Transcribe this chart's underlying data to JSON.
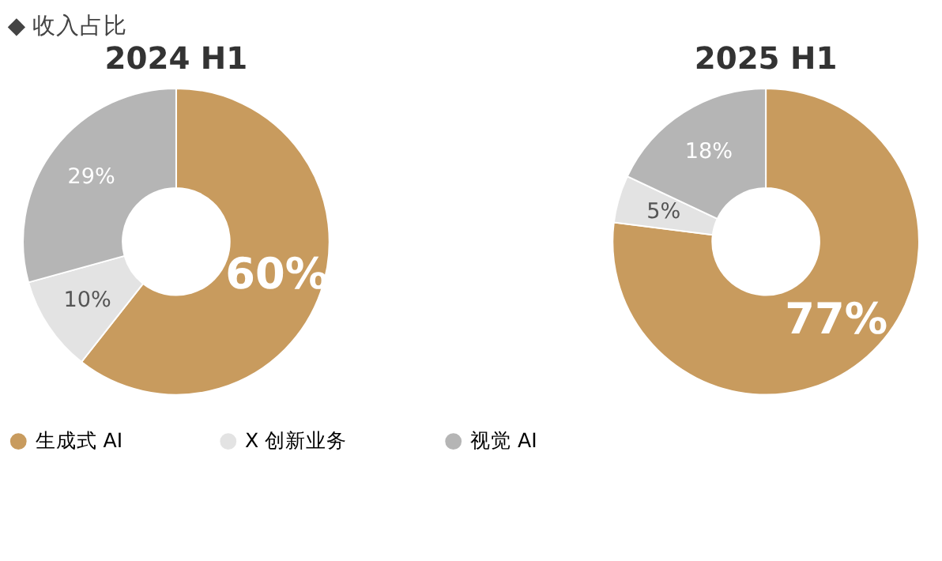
{
  "chart_data": [
    {
      "type": "donut",
      "title": "2024 H1",
      "annotations": [
        "◆ 收入占比"
      ],
      "categories": [
        "生成式 AI",
        "X 创新业务",
        "视觉 AI"
      ],
      "values": [
        60,
        10,
        29
      ],
      "colors": [
        "#c89b5e",
        "#e3e3e3",
        "#b5b5b5"
      ],
      "value_labels": [
        "60%",
        "10%",
        "29%"
      ],
      "legend": "bottom"
    },
    {
      "type": "donut",
      "title": "2025 H1",
      "categories": [
        null,
        null,
        null
      ],
      "values": [
        77,
        5,
        18
      ],
      "colors": [
        "#c89b5e",
        "#e3e3e3",
        "#b5b5b5"
      ],
      "value_labels": [
        "77%",
        "5%",
        "18%"
      ]
    }
  ]
}
